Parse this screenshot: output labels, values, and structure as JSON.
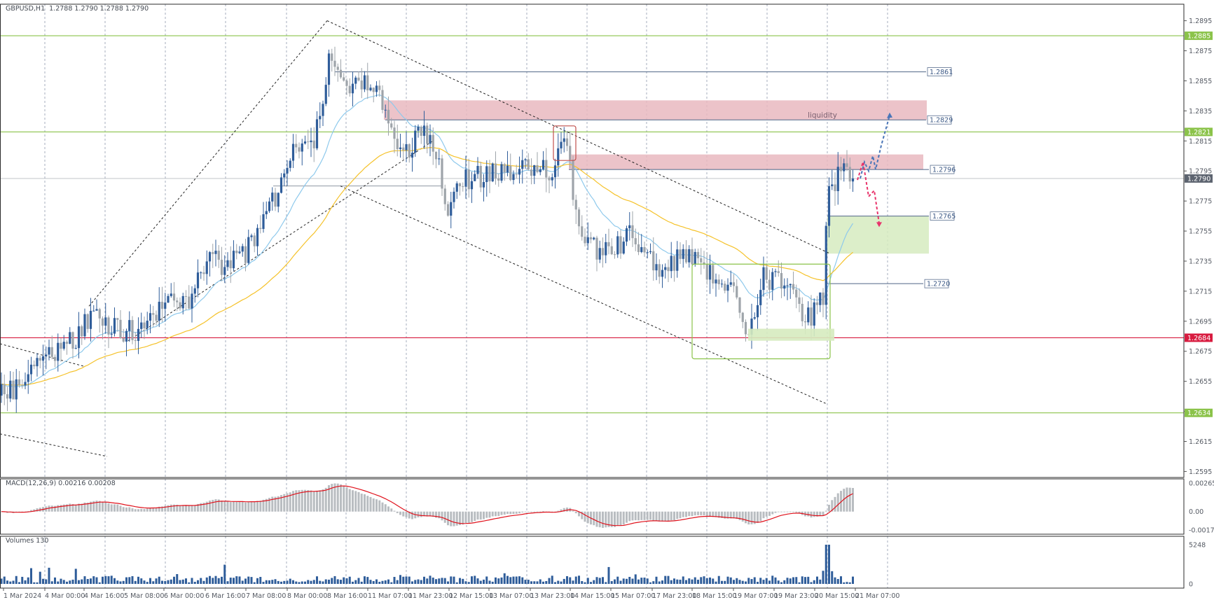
{
  "header": {
    "symbol": "GBPUSD,H1",
    "ohlc": "1.2788 1.2790 1.2788 1.2790"
  },
  "colors": {
    "bull": "#2f5d9a",
    "bear": "#9ea4aa",
    "ema_fast": "#8ec9ec",
    "ema_slow": "#f5c22a",
    "level_green": "#8bc34a",
    "level_red": "#d81b3f",
    "zone_red": "#e9b8bf",
    "zone_green": "#d6ebbf",
    "macd_signal": "#e0101a",
    "macd_hist": "#b9bdc1",
    "volume": "#2f5d9a",
    "arrow_blue": "#4a76b8",
    "arrow_red": "#e8336b"
  },
  "chart_data": [
    {
      "type": "candlestick",
      "title": "",
      "symbol": "GBPUSD,H1",
      "last_bar_ohlc": {
        "open": 1.2788,
        "high": 1.279,
        "low": 1.2788,
        "close": 1.279
      },
      "x_tick_labels": [
        "1 Mar 2024",
        "4 Mar 00:00",
        "4 Mar 16:00",
        "5 Mar 08:00",
        "6 Mar 00:00",
        "6 Mar 16:00",
        "7 Mar 08:00",
        "8 Mar 00:00",
        "8 Mar 16:00",
        "11 Mar 07:00",
        "11 Mar 23:00",
        "12 Mar 15:00",
        "13 Mar 07:00",
        "13 Mar 23:00",
        "14 Mar 15:00",
        "15 Mar 07:00",
        "17 Mar 23:00",
        "18 Mar 15:00",
        "19 Mar 07:00",
        "19 Mar 23:00",
        "20 Mar 15:00",
        "21 Mar 07:00"
      ],
      "y_tick_labels": [
        "1.2895",
        "1.2875",
        "1.2855",
        "1.2835",
        "1.2815",
        "1.2795",
        "1.2775",
        "1.2755",
        "1.2735",
        "1.2715",
        "1.2695",
        "1.2675",
        "1.2655",
        "1.2635",
        "1.2615",
        "1.2595"
      ],
      "ylim": [
        1.2591,
        1.2906
      ],
      "grid": true,
      "horizontal_levels": [
        {
          "price": 1.2885,
          "label": "1.2885",
          "style": "green-line"
        },
        {
          "price": 1.2821,
          "label": "1.2821",
          "style": "green-line"
        },
        {
          "price": 1.2684,
          "label": "1.2684",
          "style": "red-line"
        },
        {
          "price": 1.2634,
          "label": "1.2634",
          "style": "green-line"
        },
        {
          "price": 1.279,
          "label": "1.2790",
          "style": "current-price"
        }
      ],
      "marked_levels": [
        {
          "price": 1.2861,
          "label": "1.2861"
        },
        {
          "price": 1.2829,
          "label": "1.2829"
        },
        {
          "price": 1.2796,
          "label": "1.2796"
        },
        {
          "price": 1.2765,
          "label": "1.2765"
        },
        {
          "price": 1.272,
          "label": "1.2720"
        }
      ],
      "zones": [
        {
          "kind": "supply",
          "from": 1.2829,
          "to": 1.2842
        },
        {
          "kind": "supply",
          "from": 1.2796,
          "to": 1.2806
        },
        {
          "kind": "demand",
          "from": 1.274,
          "to": 1.2765
        }
      ],
      "annotations": [
        {
          "text": "liquidity",
          "price": 1.2832
        }
      ]
    },
    {
      "type": "bar",
      "title": "MACD(12,26,9) 0.00216 0.00208",
      "series": [
        {
          "name": "MACD",
          "style": "histogram"
        },
        {
          "name": "Signal",
          "style": "line"
        }
      ],
      "y_tick_labels": [
        "0.00265",
        "0.00",
        "-0.00171"
      ],
      "ylim": [
        -0.00171,
        0.00265
      ]
    },
    {
      "type": "bar",
      "title": "Volumes 130",
      "y_tick_labels": [
        "5248",
        "0"
      ],
      "ylim": [
        0,
        5248
      ]
    }
  ]
}
